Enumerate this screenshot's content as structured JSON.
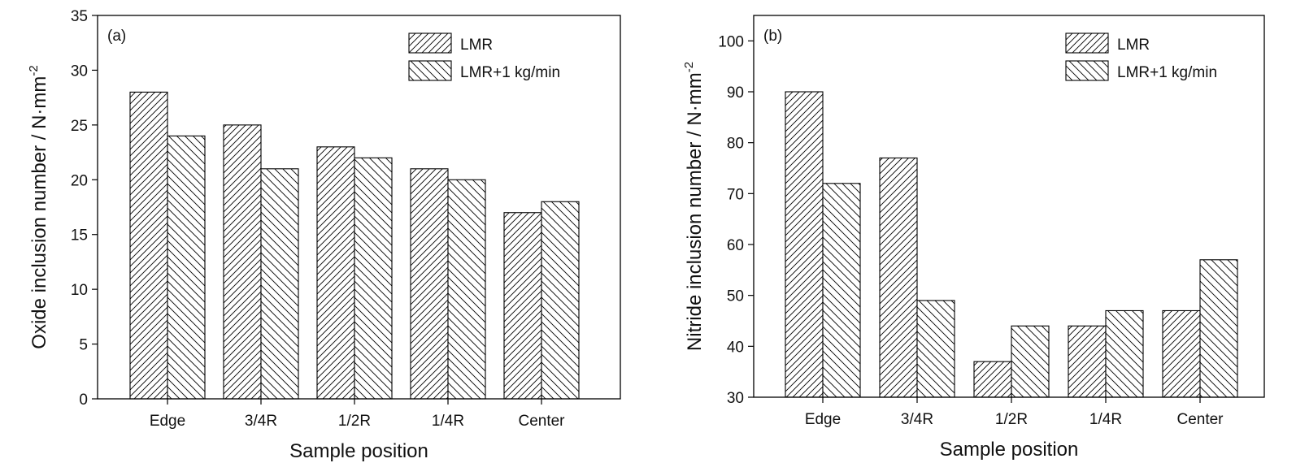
{
  "chart_data": [
    {
      "type": "bar",
      "panel_label": "(a)",
      "xlabel": "Sample position",
      "ylabel": "Oxide inclusion number / N·mm",
      "ylabel_sup": "-2",
      "categories": [
        "Edge",
        "3/4R",
        "1/2R",
        "1/4R",
        "Center"
      ],
      "series": [
        {
          "name": "LMR",
          "values": [
            28,
            25,
            23,
            21,
            17
          ],
          "pattern": "hatch-forward"
        },
        {
          "name": "LMR+1 kg/min",
          "values": [
            24,
            21,
            22,
            20,
            18
          ],
          "pattern": "hatch-back"
        }
      ],
      "ylim": [
        0,
        35
      ],
      "yticks": [
        0,
        5,
        10,
        15,
        20,
        25,
        30,
        35
      ],
      "grid": false,
      "legend": "top-right"
    },
    {
      "type": "bar",
      "panel_label": "(b)",
      "xlabel": "Sample position",
      "ylabel": "Nitride inclusion number / N·mm",
      "ylabel_sup": "-2",
      "categories": [
        "Edge",
        "3/4R",
        "1/2R",
        "1/4R",
        "Center"
      ],
      "series": [
        {
          "name": "LMR",
          "values": [
            90,
            77,
            37,
            44,
            47
          ],
          "pattern": "hatch-forward"
        },
        {
          "name": "LMR+1 kg/min",
          "values": [
            72,
            49,
            44,
            47,
            57
          ],
          "pattern": "hatch-back"
        }
      ],
      "ylim": [
        30,
        105
      ],
      "yticks": [
        30,
        40,
        50,
        60,
        70,
        80,
        90,
        100
      ],
      "grid": false,
      "legend": "top-right"
    }
  ]
}
